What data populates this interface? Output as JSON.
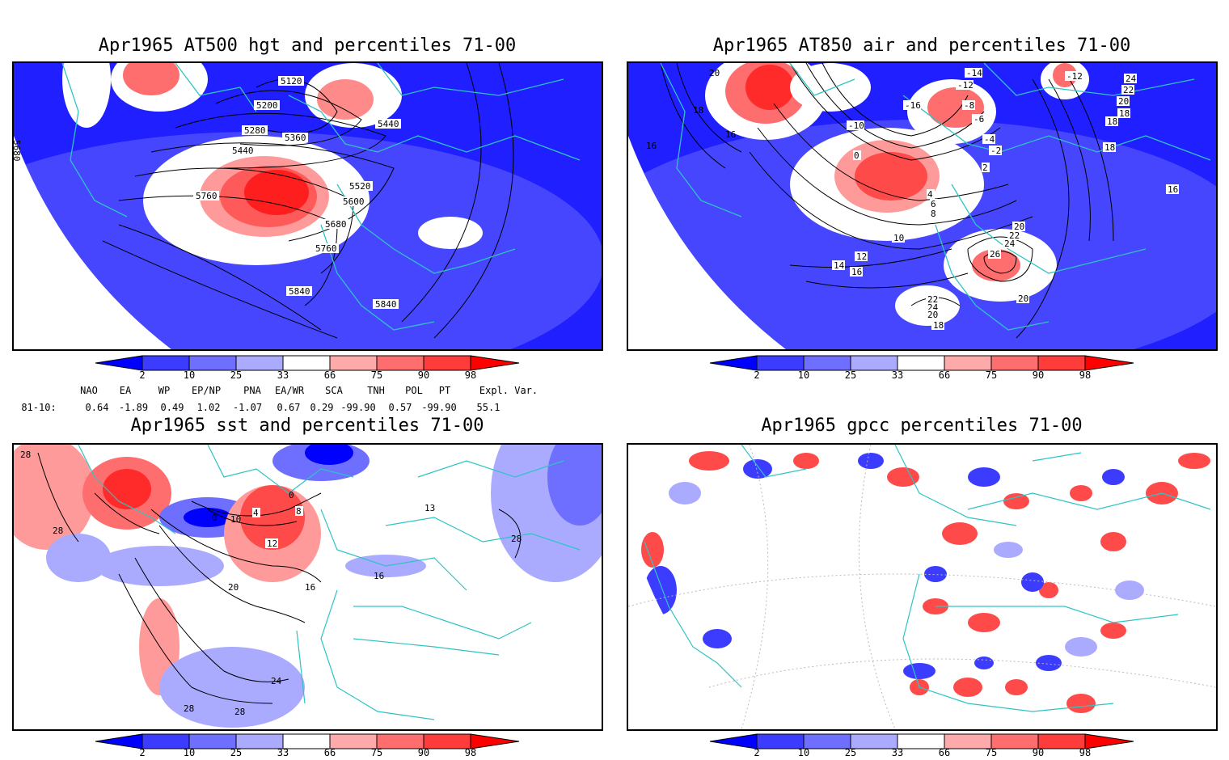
{
  "panels": [
    {
      "title": "Apr1965 AT500 hgt and percentiles 71-00",
      "contour_labels": [
        "5120",
        "5200",
        "5280",
        "5360",
        "5440",
        "5440",
        "5520",
        "5600",
        "5680",
        "5760",
        "5760",
        "5840",
        "5840",
        "5680"
      ]
    },
    {
      "title": "Apr1965 AT850 air and percentiles 71-00",
      "contour_labels": [
        "20",
        "18",
        "16",
        "16",
        "-14",
        "-12",
        "-10",
        "-16",
        "-8",
        "-6",
        "-4",
        "-2",
        "0",
        "2",
        "4",
        "6",
        "8",
        "10",
        "12",
        "14",
        "16",
        "18",
        "20",
        "22",
        "24",
        "26",
        "20",
        "22",
        "24",
        "20",
        "18",
        "24",
        "22",
        "20",
        "18",
        "18",
        "16",
        "-12"
      ]
    },
    {
      "title": "Apr1965 sst and percentiles 71-00",
      "contour_labels": [
        "28",
        "28",
        "0",
        "4",
        "8",
        "10",
        "12",
        "16",
        "16",
        "20",
        "24",
        "28",
        "28",
        "0",
        "13",
        "28"
      ]
    },
    {
      "title": "Apr1965 gpcc percentiles 71-00",
      "contour_labels": []
    }
  ],
  "colorbar": {
    "ticks": [
      "2",
      "10",
      "25",
      "33",
      "66",
      "75",
      "90",
      "98"
    ],
    "colors": [
      "#0000ff",
      "#3c3cff",
      "#6e6eff",
      "#aaaaff",
      "#ffffff",
      "#ffaaaa",
      "#ff6e6e",
      "#ff3c3c",
      "#ff0000"
    ]
  },
  "teleconnections": {
    "headers": [
      "NAO",
      "EA",
      "WP",
      "EP/NP",
      "PNA",
      "EA/WR",
      "SCA",
      "TNH",
      "POL",
      "PT",
      "Expl. Var."
    ],
    "row_label": "81-10:",
    "values": [
      "0.64",
      "-1.89",
      "0.49",
      "1.02",
      "-1.07",
      "0.67",
      "0.29",
      "-99.90",
      "0.57",
      "-99.90",
      "55.1"
    ]
  }
}
